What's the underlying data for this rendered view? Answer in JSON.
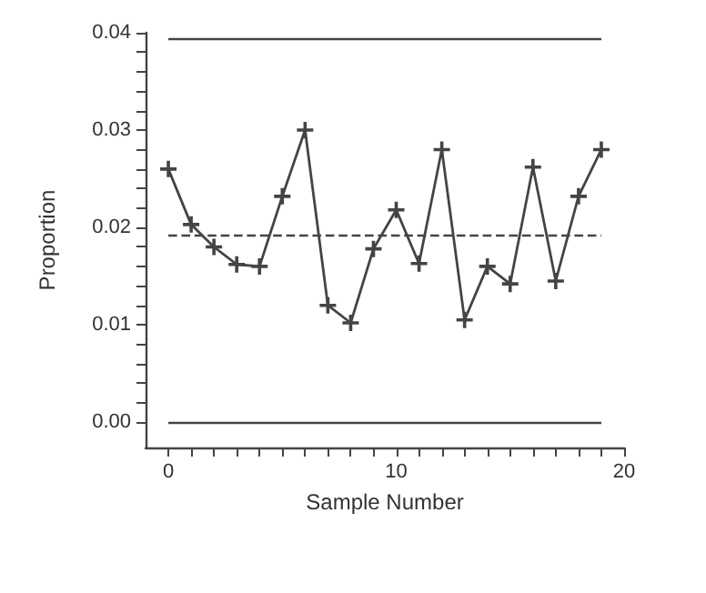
{
  "chart_data": {
    "type": "line",
    "xlabel": "Sample Number",
    "ylabel": "Proportion",
    "x": [
      0,
      1,
      2,
      3,
      4,
      5,
      6,
      7,
      8,
      9,
      10,
      11,
      12,
      13,
      14,
      15,
      16,
      17,
      18,
      19
    ],
    "series": [
      {
        "color": "#444444",
        "values": [
          0.026,
          0.0203,
          0.018,
          0.0162,
          0.016,
          0.0232,
          0.03,
          0.012,
          0.0102,
          0.0178,
          0.0218,
          0.0163,
          0.028,
          0.0105,
          0.016,
          0.0142,
          0.0262,
          0.0145,
          0.0232,
          0.028
        ]
      }
    ],
    "xlim": [
      -1,
      20
    ],
    "ylim": [
      -0.0026,
      0.04
    ],
    "xticks": [
      0,
      {
        "value": 1,
        "label": null
      },
      {
        "value": 2,
        "label": null
      },
      {
        "value": 3,
        "label": null
      },
      {
        "value": 4,
        "label": null
      },
      {
        "value": 5,
        "label": null
      },
      {
        "value": 6,
        "label": null
      },
      {
        "value": 7,
        "label": null
      },
      {
        "value": 8,
        "label": null
      },
      {
        "value": 9,
        "label": null
      },
      10,
      {
        "value": 11,
        "label": null
      },
      {
        "value": 12,
        "label": null
      },
      {
        "value": 13,
        "label": null
      },
      {
        "value": 14,
        "label": null
      },
      {
        "value": 15,
        "label": null
      },
      {
        "value": 16,
        "label": null
      },
      {
        "value": 17,
        "label": null
      },
      {
        "value": 18,
        "label": null
      },
      {
        "value": 19,
        "label": null
      },
      20
    ],
    "yticks": [
      {
        "value": 0,
        "label": "0.00"
      },
      {
        "value": 0.002,
        "label": null
      },
      {
        "value": 0.004,
        "label": null
      },
      {
        "value": 0.006,
        "label": null
      },
      {
        "value": 0.008,
        "label": null
      },
      {
        "value": 0.01,
        "label": "0.01"
      },
      {
        "value": 0.012,
        "label": null
      },
      {
        "value": 0.014,
        "label": null
      },
      {
        "value": 0.016,
        "label": null
      },
      {
        "value": 0.018,
        "label": null
      },
      {
        "value": 0.02,
        "label": "0.02"
      },
      {
        "value": 0.022,
        "label": null
      },
      {
        "value": 0.024,
        "label": null
      },
      {
        "value": 0.026,
        "label": null
      },
      {
        "value": 0.028,
        "label": null
      },
      {
        "value": 0.03,
        "label": "0.03"
      },
      {
        "value": 0.032,
        "label": null
      },
      {
        "value": 0.034,
        "label": null
      },
      {
        "value": 0.036,
        "label": null
      },
      {
        "value": 0.038,
        "label": null
      },
      {
        "value": 0.04,
        "label": "0.04"
      }
    ],
    "ref_lines": [
      {
        "axis": "y",
        "value": 0.0394,
        "color": "#444444",
        "line_style": "solid"
      },
      {
        "axis": "y",
        "value": 0.0193,
        "color": "#444444",
        "line_style": "dashed"
      },
      {
        "axis": "y",
        "value": 0,
        "color": "#444444",
        "line_style": "solid"
      }
    ],
    "marker": "cross",
    "line_style": "solid",
    "grid": false
  }
}
